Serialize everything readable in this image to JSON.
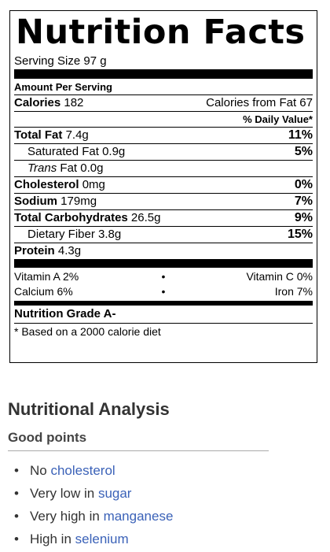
{
  "label": {
    "title": "Nutrition Facts",
    "serving_size": "Serving Size 97 g",
    "amount_per_serving": "Amount Per Serving",
    "calories": {
      "label": "Calories",
      "value": "182",
      "from_fat": "Calories from Fat 67"
    },
    "daily_value_header": "% Daily Value*",
    "rows": {
      "total_fat": {
        "label": "Total Fat",
        "value": "7.4g",
        "pct": "11%"
      },
      "saturated_fat": {
        "label": "Saturated Fat",
        "value": "0.9g",
        "pct": "5%"
      },
      "trans_fat": {
        "label_italic": "Trans",
        "label_rest": " Fat",
        "value": "0.0g"
      },
      "cholesterol": {
        "label": "Cholesterol",
        "value": "0mg",
        "pct": "0%"
      },
      "sodium": {
        "label": "Sodium",
        "value": "179mg",
        "pct": "7%"
      },
      "total_carbs": {
        "label": "Total Carbohydrates",
        "value": "26.5g",
        "pct": "9%"
      },
      "dietary_fiber": {
        "label": "Dietary Fiber",
        "value": "3.8g",
        "pct": "15%"
      },
      "protein": {
        "label": "Protein",
        "value": "4.3g"
      }
    },
    "vitamins": [
      {
        "left": "Vitamin A 2%",
        "sep": "•",
        "right": "Vitamin C 0%"
      },
      {
        "left": "Calcium 6%",
        "sep": "•",
        "right": "Iron 7%"
      }
    ],
    "grade": "Nutrition Grade A-",
    "footnote": "* Based on a 2000 calorie diet"
  },
  "analysis": {
    "title": "Nutritional Analysis",
    "subtitle": "Good points",
    "points": [
      {
        "prefix": "No ",
        "link": "cholesterol"
      },
      {
        "prefix": "Very low in ",
        "link": "sugar"
      },
      {
        "prefix": "Very high in ",
        "link": "manganese"
      },
      {
        "prefix": "High in ",
        "link": "selenium"
      }
    ],
    "link_color": "#3b62b8"
  }
}
